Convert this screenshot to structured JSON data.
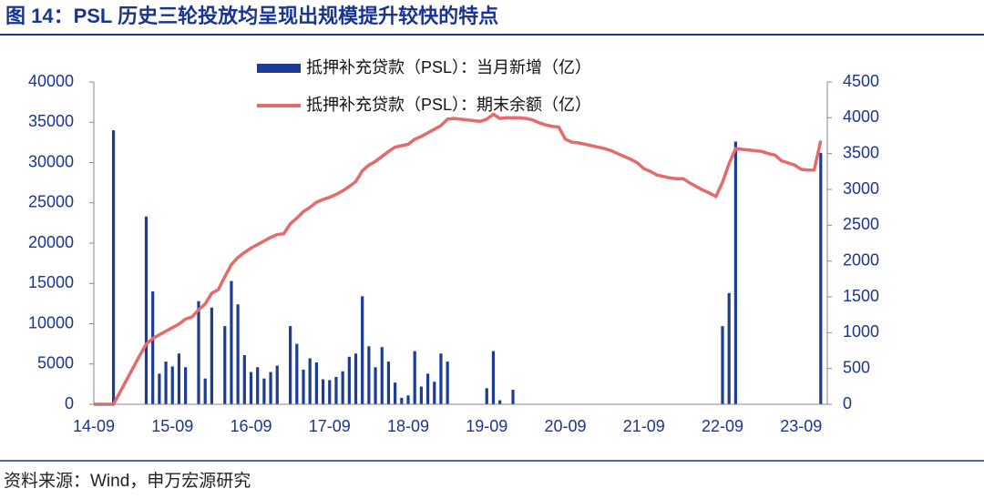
{
  "chart_data": {
    "type": "combo",
    "title": "图 14：PSL 历史三轮投放均呈现出规模提升较快的特点",
    "source": "资料来源：Wind，申万宏源研究",
    "categories": [
      "14-09",
      null,
      null,
      null,
      null,
      null,
      null,
      null,
      null,
      null,
      null,
      null,
      "15-09",
      null,
      null,
      null,
      null,
      null,
      null,
      null,
      null,
      null,
      null,
      null,
      "16-09",
      null,
      null,
      null,
      null,
      null,
      null,
      null,
      null,
      null,
      null,
      null,
      "17-09",
      null,
      null,
      null,
      null,
      null,
      null,
      null,
      null,
      null,
      null,
      null,
      "18-09",
      null,
      null,
      null,
      null,
      null,
      null,
      null,
      null,
      null,
      null,
      null,
      "19-09",
      null,
      null,
      null,
      null,
      null,
      null,
      null,
      null,
      null,
      null,
      null,
      "20-09",
      null,
      null,
      null,
      null,
      null,
      null,
      null,
      null,
      null,
      null,
      null,
      "21-09",
      null,
      null,
      null,
      null,
      null,
      null,
      null,
      null,
      null,
      null,
      null,
      "22-09",
      null,
      null,
      null,
      null,
      null,
      null,
      null,
      null,
      null,
      null,
      null,
      "23-09",
      null,
      null,
      null
    ],
    "ylim": [
      0,
      40000
    ],
    "yticks": [
      0,
      5000,
      10000,
      15000,
      20000,
      25000,
      30000,
      35000,
      40000
    ],
    "y2lim": [
      0,
      4500
    ],
    "y2ticks": [
      0,
      500,
      1000,
      1500,
      2000,
      2500,
      3000,
      3500,
      4000,
      4500
    ],
    "legend": "top",
    "series": [
      {
        "name": "抵押补充贷款（PSL）：当月新增（亿）",
        "type": "bar",
        "color": "#1c3c96",
        "values": [
          0,
          0,
          0,
          34000,
          0,
          0,
          0,
          0,
          23300,
          14000,
          3800,
          5300,
          4700,
          6300,
          4600,
          0,
          12800,
          3200,
          12000,
          0,
          9700,
          15300,
          12400,
          6100,
          4000,
          4600,
          3200,
          4000,
          4800,
          0,
          9700,
          7500,
          4300,
          5700,
          5200,
          3100,
          3000,
          3400,
          4100,
          5900,
          6300,
          13400,
          7200,
          4600,
          7100,
          5300,
          2700,
          800,
          1100,
          6600,
          2200,
          3800,
          2800,
          6300,
          5300,
          0,
          0,
          0,
          0,
          0,
          2000,
          6600,
          500,
          0,
          1800,
          0,
          0,
          0,
          0,
          0,
          0,
          0,
          0,
          0,
          0,
          0,
          0,
          0,
          0,
          0,
          0,
          0,
          0,
          0,
          0,
          0,
          0,
          0,
          0,
          0,
          0,
          0,
          0,
          0,
          0,
          0,
          9700,
          13800,
          32600,
          0,
          0,
          0,
          0,
          0,
          0,
          0,
          0,
          0,
          0,
          0,
          0,
          31200
        ]
      },
      {
        "name": "抵押补充贷款（PSL）：期末余额（亿）",
        "type": "line",
        "axis": "y2",
        "color": "#e46a6b",
        "values": [
          0,
          0,
          0,
          0,
          170,
          340,
          510,
          680,
          840,
          920,
          970,
          1020,
          1070,
          1120,
          1190,
          1220,
          1320,
          1400,
          1550,
          1600,
          1780,
          1950,
          2050,
          2120,
          2180,
          2230,
          2280,
          2330,
          2370,
          2380,
          2520,
          2600,
          2690,
          2750,
          2820,
          2860,
          2890,
          2930,
          2980,
          3040,
          3110,
          3260,
          3340,
          3390,
          3460,
          3530,
          3590,
          3610,
          3630,
          3700,
          3740,
          3790,
          3840,
          3890,
          3980,
          3990,
          3980,
          3970,
          3960,
          3950,
          3980,
          4050,
          3990,
          4000,
          4000,
          4000,
          3990,
          3970,
          3930,
          3900,
          3880,
          3870,
          3700,
          3660,
          3650,
          3630,
          3610,
          3590,
          3570,
          3540,
          3500,
          3460,
          3420,
          3370,
          3290,
          3250,
          3200,
          3180,
          3160,
          3150,
          3150,
          3090,
          3040,
          2990,
          2950,
          2900,
          3100,
          3360,
          3570,
          3560,
          3550,
          3540,
          3530,
          3500,
          3480,
          3400,
          3370,
          3340,
          3280,
          3270,
          3270,
          3680
        ]
      }
    ]
  }
}
